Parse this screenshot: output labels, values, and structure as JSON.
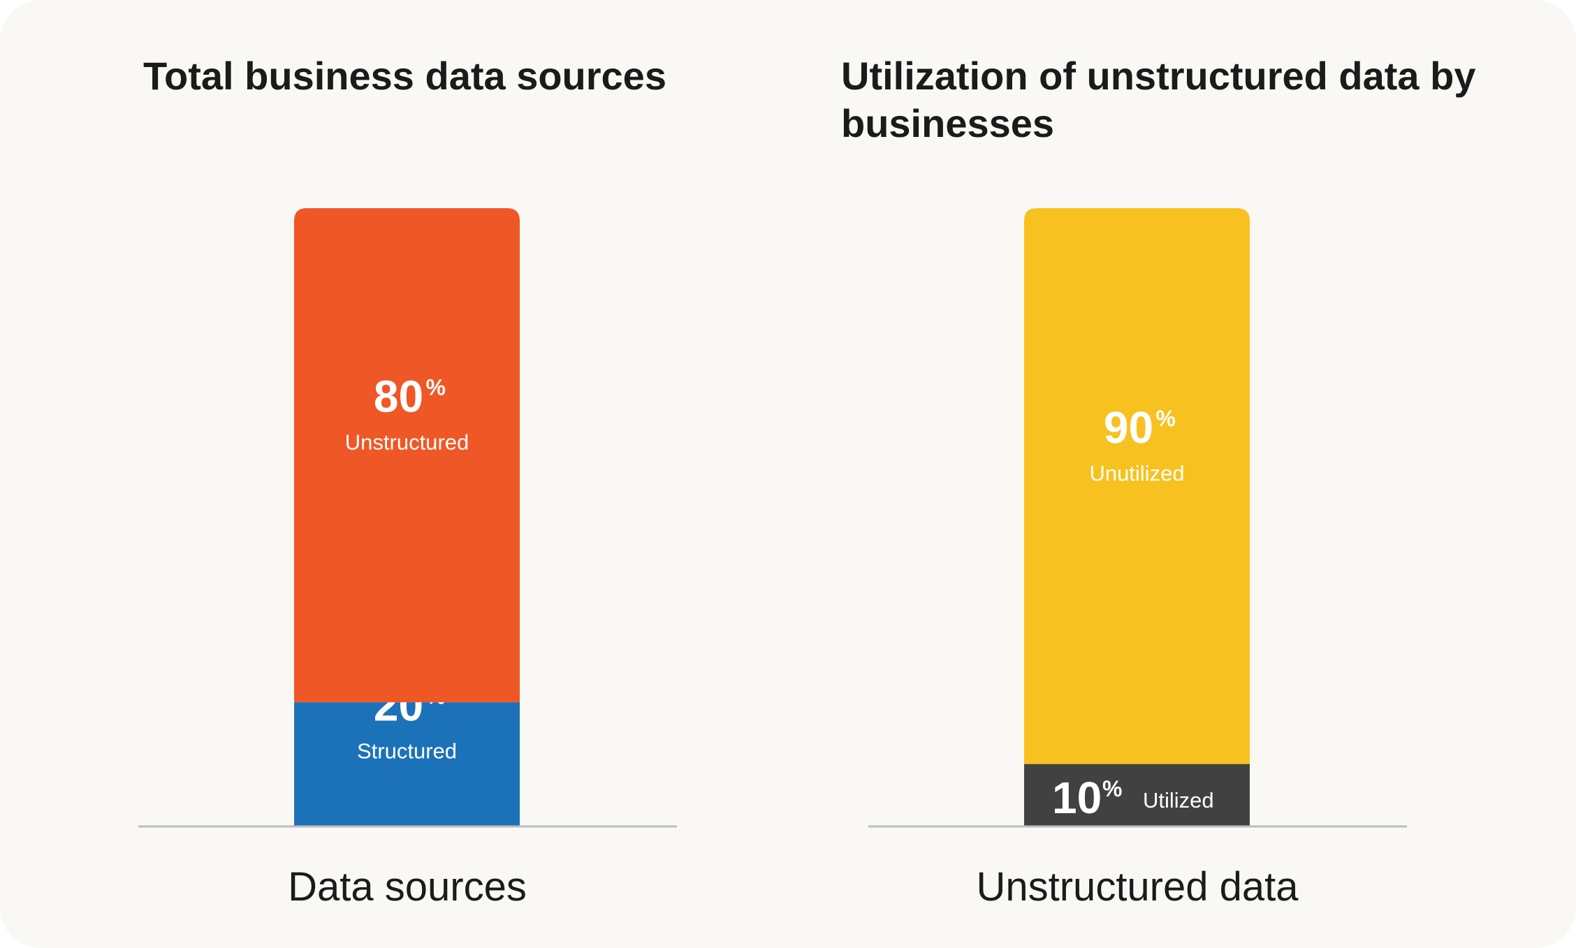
{
  "chart_data": [
    {
      "type": "bar",
      "stacked": true,
      "title": "Total business data sources",
      "xlabel": "Data sources",
      "categories": [
        "Data sources"
      ],
      "ylim": [
        0,
        100
      ],
      "unit": "%",
      "series": [
        {
          "name": "Structured",
          "values": [
            20
          ],
          "color": "#1c72b8"
        },
        {
          "name": "Unstructured",
          "values": [
            80
          ],
          "color": "#f05726"
        }
      ]
    },
    {
      "type": "bar",
      "stacked": true,
      "title": "Utilization of unstructured data by businesses",
      "xlabel": "Unstructured data",
      "categories": [
        "Unstructured data"
      ],
      "ylim": [
        0,
        100
      ],
      "unit": "%",
      "series": [
        {
          "name": "Utilized",
          "values": [
            10
          ],
          "color": "#414141"
        },
        {
          "name": "Unutilized",
          "values": [
            90
          ],
          "color": "#f7c11f"
        }
      ]
    }
  ],
  "colors": {
    "background": "#f9f8f5",
    "axis": "#bdbdbd",
    "text": "#1b1b1b",
    "label": "#ffffff"
  }
}
